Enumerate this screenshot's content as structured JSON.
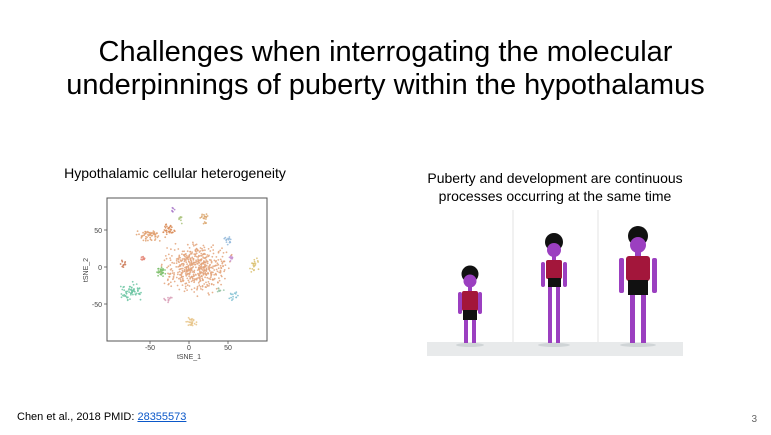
{
  "slide": {
    "title_line1": "Challenges when interrogating the molecular",
    "title_line2": "underpinnings of puberty within the hypothalamus",
    "left_caption": "Hypothalamic cellular heterogeneity",
    "right_caption_line1": "Puberty and development are continuous",
    "right_caption_line2": "processes occurring at the same time",
    "citation_text": "Chen et al., 2018 PMID: ",
    "citation_link": "28355573",
    "page_number": "3"
  },
  "tsne_plot": {
    "ylabel": "tSNE_2",
    "xlabel": "tSNE_1",
    "x_ticks": [
      "-50",
      "0",
      "50"
    ],
    "y_ticks": [
      "50",
      "0",
      "-50"
    ]
  },
  "colors": {
    "figure_skin": "#9b3fc0",
    "figure_shirt": "#a3163b",
    "figure_shorts": "#111111",
    "figure_hair": "#111111",
    "main_cluster": "#e3a37a",
    "link_blue": "#0b58c9"
  }
}
